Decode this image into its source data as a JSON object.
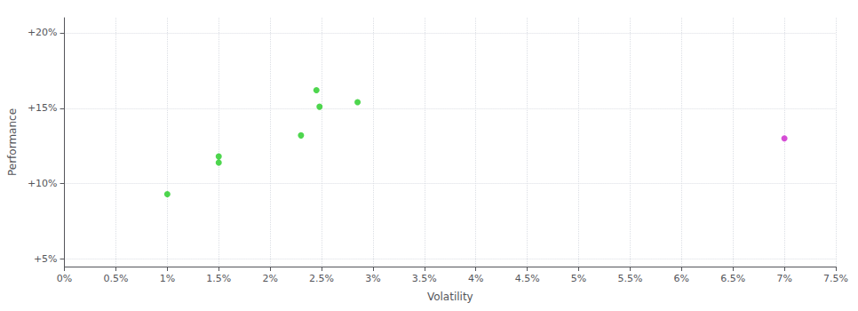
{
  "chart_data": {
    "type": "scatter",
    "xlabel": "Volatility",
    "ylabel": "Performance",
    "xlim": [
      0.0,
      0.075
    ],
    "ylim": [
      0.045,
      0.21
    ],
    "xticks": [
      {
        "value": 0.0,
        "label": "0%"
      },
      {
        "value": 0.005,
        "label": "0.5%"
      },
      {
        "value": 0.01,
        "label": "1%"
      },
      {
        "value": 0.015,
        "label": "1.5%"
      },
      {
        "value": 0.02,
        "label": "2%"
      },
      {
        "value": 0.025,
        "label": "2.5%"
      },
      {
        "value": 0.03,
        "label": "3%"
      },
      {
        "value": 0.035,
        "label": "3.5%"
      },
      {
        "value": 0.04,
        "label": "4%"
      },
      {
        "value": 0.045,
        "label": "4.5%"
      },
      {
        "value": 0.05,
        "label": "5%"
      },
      {
        "value": 0.055,
        "label": "5.5%"
      },
      {
        "value": 0.06,
        "label": "6%"
      },
      {
        "value": 0.065,
        "label": "6.5%"
      },
      {
        "value": 0.07,
        "label": "7%"
      },
      {
        "value": 0.075,
        "label": "7.5%"
      }
    ],
    "yticks": [
      {
        "value": 0.05,
        "label": "+5%"
      },
      {
        "value": 0.1,
        "label": "+10%"
      },
      {
        "value": 0.15,
        "label": "+15%"
      },
      {
        "value": 0.2,
        "label": "+20%"
      }
    ],
    "grid": true,
    "series": [
      {
        "color": "#22cc22",
        "x": [
          0.01,
          0.015,
          0.015,
          0.023,
          0.0245,
          0.0248,
          0.0285
        ],
        "values": [
          0.093,
          0.118,
          0.114,
          0.132,
          0.162,
          0.151,
          0.154
        ]
      },
      {
        "color": "#cc22cc",
        "x": [
          0.07
        ],
        "values": [
          0.13
        ]
      }
    ]
  }
}
